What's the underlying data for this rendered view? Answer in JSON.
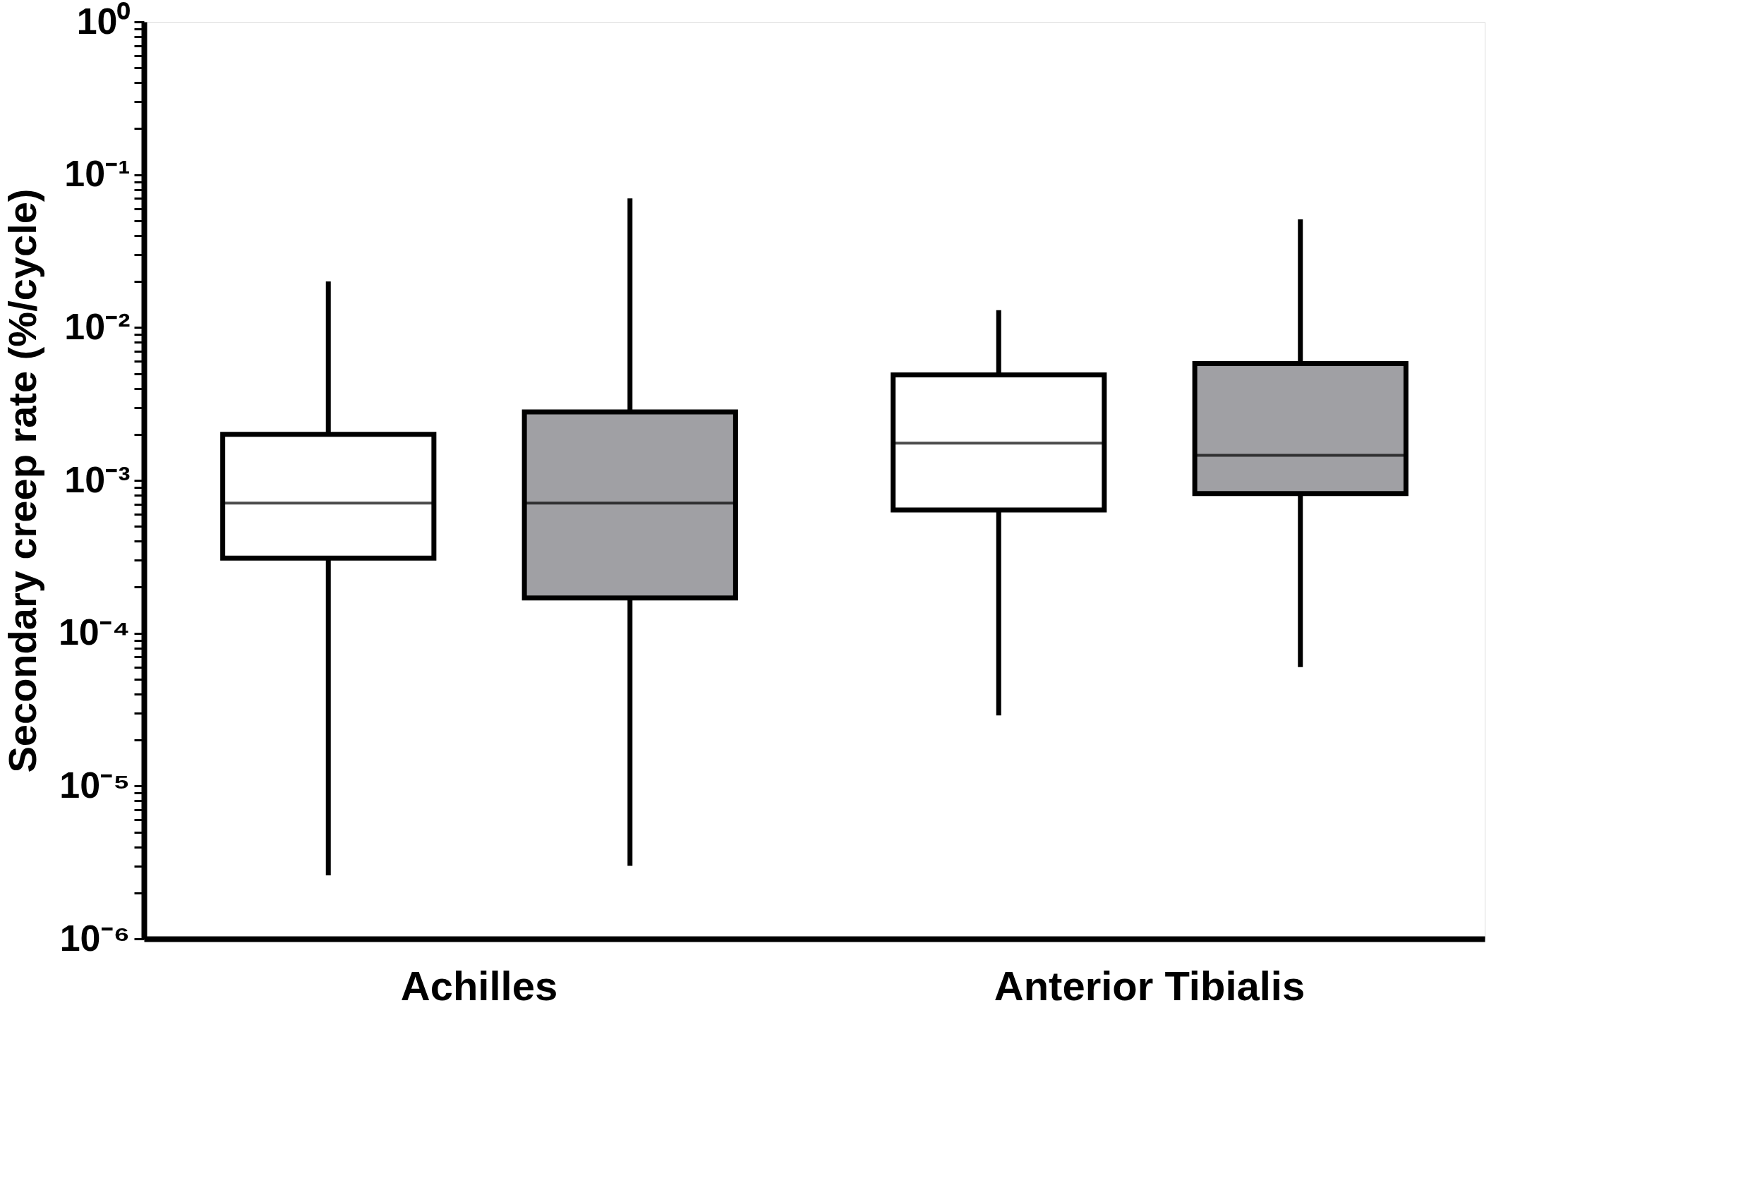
{
  "chart_data": {
    "type": "box",
    "ylabel": "Secondary creep rate (%/cycle)",
    "categories": [
      "Achilles",
      "Anterior Tibialis"
    ],
    "log": "y",
    "grid": false,
    "legend": false,
    "ylim": [
      1e-06,
      1
    ],
    "yticks": [
      {
        "value": 1e-06,
        "label": "10⁻⁶"
      },
      {
        "value": 2e-06,
        "label": null
      },
      {
        "value": 3e-06,
        "label": null
      },
      {
        "value": 4e-06,
        "label": null
      },
      {
        "value": 5e-06,
        "label": null
      },
      {
        "value": 6e-06,
        "label": null
      },
      {
        "value": 7e-06,
        "label": null
      },
      {
        "value": 8e-06,
        "label": null
      },
      {
        "value": 9e-06,
        "label": null
      },
      {
        "value": 1e-05,
        "label": "10⁻⁵"
      },
      {
        "value": 2e-05,
        "label": null
      },
      {
        "value": 3e-05,
        "label": null
      },
      {
        "value": 4e-05,
        "label": null
      },
      {
        "value": 5e-05,
        "label": null
      },
      {
        "value": 6e-05,
        "label": null
      },
      {
        "value": 7e-05,
        "label": null
      },
      {
        "value": 8e-05,
        "label": null
      },
      {
        "value": 9e-05,
        "label": null
      },
      {
        "value": 0.0001,
        "label": "10⁻⁴"
      },
      {
        "value": 0.0002,
        "label": null
      },
      {
        "value": 0.0003,
        "label": null
      },
      {
        "value": 0.0004,
        "label": null
      },
      {
        "value": 0.0005,
        "label": null
      },
      {
        "value": 0.0006,
        "label": null
      },
      {
        "value": 0.0007,
        "label": null
      },
      {
        "value": 0.0008,
        "label": null
      },
      {
        "value": 0.0009,
        "label": null
      },
      {
        "value": 0.001,
        "label": "10⁻³"
      },
      {
        "value": 0.002,
        "label": null
      },
      {
        "value": 0.003,
        "label": null
      },
      {
        "value": 0.004,
        "label": null
      },
      {
        "value": 0.005,
        "label": null
      },
      {
        "value": 0.006,
        "label": null
      },
      {
        "value": 0.007,
        "label": null
      },
      {
        "value": 0.008,
        "label": null
      },
      {
        "value": 0.009,
        "label": null
      },
      {
        "value": 0.01,
        "label": "10⁻²"
      },
      {
        "value": 0.02,
        "label": null
      },
      {
        "value": 0.03,
        "label": null
      },
      {
        "value": 0.04,
        "label": null
      },
      {
        "value": 0.05,
        "label": null
      },
      {
        "value": 0.06,
        "label": null
      },
      {
        "value": 0.07,
        "label": null
      },
      {
        "value": 0.08,
        "label": null
      },
      {
        "value": 0.09,
        "label": null
      },
      {
        "value": 0.1,
        "label": "10⁻¹"
      },
      {
        "value": 0.2,
        "label": null
      },
      {
        "value": 0.3,
        "label": null
      },
      {
        "value": 0.4,
        "label": null
      },
      {
        "value": 0.5,
        "label": null
      },
      {
        "value": 0.6,
        "label": null
      },
      {
        "value": 0.7,
        "label": null
      },
      {
        "value": 0.8,
        "label": null
      },
      {
        "value": 0.9,
        "label": null
      },
      {
        "value": 1,
        "label": "10⁰"
      }
    ],
    "series": [
      {
        "color": "#ffffff",
        "boxes": [
          {
            "low": 2.6e-06,
            "q1": 0.00031,
            "median": 0.00071,
            "q3": 0.002,
            "high": 0.02
          },
          {
            "low": 2.9e-05,
            "q1": 0.00064,
            "median": 0.00175,
            "q3": 0.0049,
            "high": 0.013
          }
        ]
      },
      {
        "color": "#a0a0a4",
        "boxes": [
          {
            "low": 3e-06,
            "q1": 0.00017,
            "median": 0.00071,
            "q3": 0.0028,
            "high": 0.07
          },
          {
            "low": 6e-05,
            "q1": 0.00082,
            "median": 0.00146,
            "q3": 0.0058,
            "high": 0.051
          }
        ]
      }
    ]
  }
}
